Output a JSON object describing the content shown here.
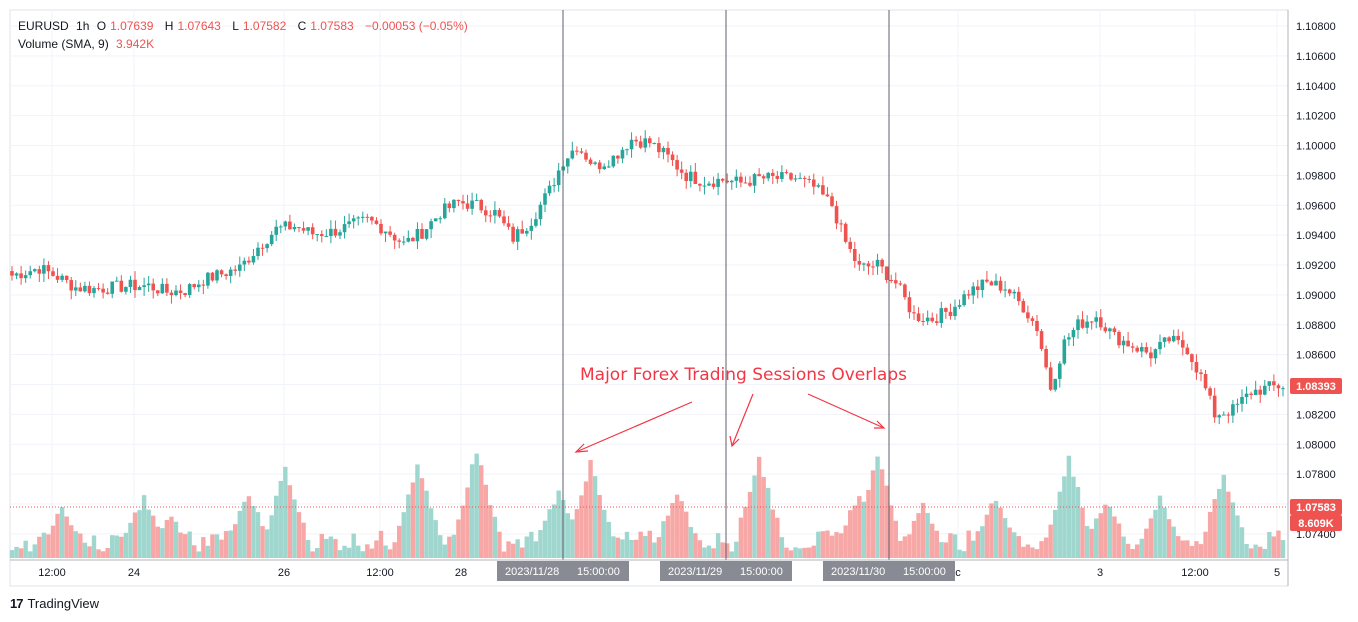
{
  "legend": {
    "symbol": "EURUSD",
    "interval": "1h",
    "open_label": "O",
    "open": "1.07639",
    "high_label": "H",
    "high": "1.07643",
    "low_label": "L",
    "low": "1.07582",
    "close_label": "C",
    "close": "1.07583",
    "change": "−0.00053 (−0.05%)",
    "volume_label": "Volume (SMA, 9)",
    "volume_value": "3.942K"
  },
  "annotation": {
    "text": "Major Forex Trading Sessions Overlaps",
    "color": "#f23645"
  },
  "markers": [
    {
      "date": "2023/11/28",
      "time": "15:00:00"
    },
    {
      "date": "2023/11/29",
      "time": "15:00:00"
    },
    {
      "date": "2023/11/30",
      "time": "15:00:00"
    }
  ],
  "price_labels": {
    "last": "1.08393",
    "close_line": "1.07583",
    "volume": "8.609K"
  },
  "footer": {
    "brand": "TradingView",
    "logo": "17"
  },
  "colors": {
    "up": "#26a69a",
    "down": "#ef5350",
    "up_vol": "#9fd7cf",
    "down_vol": "#f7a7a5"
  },
  "chart_data": {
    "type": "candlestick",
    "title": "EURUSD, 1h",
    "y_ticks": [
      "1.10800",
      "1.10600",
      "1.10400",
      "1.10200",
      "1.10000",
      "1.09800",
      "1.09600",
      "1.09400",
      "1.09200",
      "1.09000",
      "1.08800",
      "1.08600",
      "1.08400",
      "1.08200",
      "1.08000",
      "1.07800",
      "1.07600",
      "1.07400"
    ],
    "y_range": [
      1.0728,
      1.1095
    ],
    "x_ticks": [
      "12:00",
      "24",
      "26",
      "12:00",
      "28",
      "c",
      "3",
      "12:00",
      "5"
    ],
    "grid": true,
    "close_path": [
      [
        0,
        1.0913
      ],
      [
        6,
        1.0918
      ],
      [
        10,
        1.0912
      ],
      [
        14,
        1.0905
      ],
      [
        18,
        1.0904
      ],
      [
        22,
        1.0905
      ],
      [
        26,
        1.0906
      ],
      [
        30,
        1.0906
      ],
      [
        34,
        1.0902
      ],
      [
        38,
        1.0903
      ],
      [
        42,
        1.091
      ],
      [
        46,
        1.0914
      ],
      [
        50,
        1.0918
      ],
      [
        54,
        1.0932
      ],
      [
        58,
        1.0944
      ],
      [
        62,
        1.0946
      ],
      [
        66,
        1.0941
      ],
      [
        70,
        1.0942
      ],
      [
        74,
        1.0946
      ],
      [
        78,
        1.095
      ],
      [
        82,
        1.0944
      ],
      [
        86,
        1.0934
      ],
      [
        90,
        1.0942
      ],
      [
        94,
        1.0955
      ],
      [
        98,
        1.0962
      ],
      [
        102,
        1.096
      ],
      [
        106,
        1.0955
      ],
      [
        110,
        1.0938
      ],
      [
        114,
        1.095
      ],
      [
        118,
        1.097
      ],
      [
        121,
        1.099
      ],
      [
        124,
        1.1
      ],
      [
        128,
        1.0986
      ],
      [
        132,
        1.0992
      ],
      [
        136,
        1.1004
      ],
      [
        140,
        1.1002
      ],
      [
        144,
        1.0992
      ],
      [
        148,
        1.098
      ],
      [
        152,
        1.0976
      ],
      [
        156,
        1.0977
      ],
      [
        160,
        1.0975
      ],
      [
        164,
        1.0978
      ],
      [
        168,
        1.0978
      ],
      [
        172,
        1.0978
      ],
      [
        176,
        1.0972
      ],
      [
        180,
        1.096
      ],
      [
        183,
        1.0935
      ],
      [
        186,
        1.0918
      ],
      [
        190,
        1.092
      ],
      [
        194,
        1.0908
      ],
      [
        198,
        1.0886
      ],
      [
        202,
        1.0884
      ],
      [
        206,
        1.089
      ],
      [
        210,
        1.0902
      ],
      [
        214,
        1.0908
      ],
      [
        218,
        1.0905
      ],
      [
        222,
        1.0892
      ],
      [
        225,
        1.0878
      ],
      [
        228,
        1.0838
      ],
      [
        231,
        1.0868
      ],
      [
        234,
        1.088
      ],
      [
        238,
        1.0886
      ],
      [
        242,
        1.0872
      ],
      [
        246,
        1.0866
      ],
      [
        250,
        1.086
      ],
      [
        254,
        1.087
      ],
      [
        258,
        1.0864
      ],
      [
        261,
        1.0845
      ],
      [
        264,
        1.082
      ],
      [
        268,
        1.0823
      ],
      [
        272,
        1.0835
      ],
      [
        276,
        1.0838
      ],
      [
        278,
        1.0839
      ]
    ],
    "volume_series": {
      "name": "Volume (SMA, 9)",
      "spikes": [
        [
          11,
          4.1
        ],
        [
          29,
          5.3
        ],
        [
          35,
          3.5
        ],
        [
          52,
          5.6
        ],
        [
          60,
          7.8
        ],
        [
          89,
          8.3
        ],
        [
          102,
          9.7
        ],
        [
          120,
          6.0
        ],
        [
          127,
          8.6
        ],
        [
          146,
          5.6
        ],
        [
          164,
          9.0
        ],
        [
          186,
          5.8
        ],
        [
          190,
          9.3
        ],
        [
          200,
          4.4
        ],
        [
          216,
          5.3
        ],
        [
          232,
          8.8
        ],
        [
          240,
          4.9
        ],
        [
          252,
          5.1
        ],
        [
          266,
          7.1
        ]
      ],
      "ylim": [
        0,
        12
      ]
    },
    "session_overlaps": [
      127,
      164,
      200
    ]
  }
}
